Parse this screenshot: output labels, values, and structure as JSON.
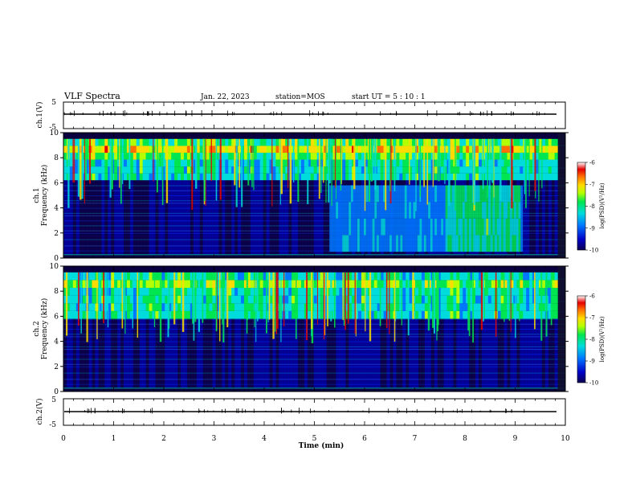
{
  "header": {
    "title": "VLF Spectra",
    "date": "Jan. 22, 2023",
    "station": "station=MOS",
    "start": "start UT =  5 : 10 : 1"
  },
  "colors": {
    "black": "#000000",
    "colormap": [
      "#0c0050",
      "#0000c8",
      "#0078ff",
      "#00dcdc",
      "#00e650",
      "#b4ff00",
      "#ffdc00",
      "#ff6e00",
      "#e60000",
      "#ffffff"
    ]
  },
  "chart_data": [
    {
      "id": "ch1-waveform",
      "type": "line",
      "ylabel": "ch.1(V)",
      "ylim": [
        -5,
        5
      ],
      "yticks": [
        "5",
        "-5"
      ],
      "baseline": -1.5
    },
    {
      "id": "ch1-spectrogram",
      "type": "heatmap",
      "ylabel_top": "ch.1",
      "ylabel": "Frequency (kHz)",
      "ylim": [
        0,
        10
      ],
      "yticks": [
        "10",
        "8",
        "6",
        "4",
        "2",
        "0"
      ],
      "colorbar": {
        "label": "log(PSD)(V²/Hz)",
        "range": [
          -10,
          -6
        ],
        "ticks": [
          "-6",
          "-7",
          "-8",
          "-9",
          "-10"
        ]
      },
      "features": {
        "band_khz": [
          6.2,
          9.5
        ],
        "broadband_interval_min": [
          5.3,
          9.15
        ],
        "broadband_freq_khz": [
          0.5,
          5.8
        ]
      }
    },
    {
      "id": "ch2-spectrogram",
      "type": "heatmap",
      "ylabel_top": "ch.2",
      "ylabel": "Frequency (kHz)",
      "ylim": [
        0,
        10
      ],
      "yticks": [
        "10",
        "8",
        "6",
        "4",
        "2",
        "0"
      ],
      "colorbar": {
        "label": "log(PSD)(V²/Hz)",
        "range": [
          -10,
          -6
        ],
        "ticks": [
          "-6",
          "-7",
          "-8",
          "-9",
          "-10"
        ]
      },
      "features": {
        "band_khz": [
          5.8,
          9.5
        ]
      }
    },
    {
      "id": "ch2-waveform",
      "type": "line",
      "ylabel": "ch.2(V)",
      "ylim": [
        -5,
        5
      ],
      "yticks": [
        "5",
        "-5"
      ],
      "baseline": -1.5
    }
  ],
  "xaxis": {
    "label": "Time (min)",
    "range": [
      0,
      10
    ],
    "ticks": [
      "0",
      "1",
      "2",
      "3",
      "4",
      "5",
      "6",
      "7",
      "8",
      "9",
      "10"
    ]
  }
}
